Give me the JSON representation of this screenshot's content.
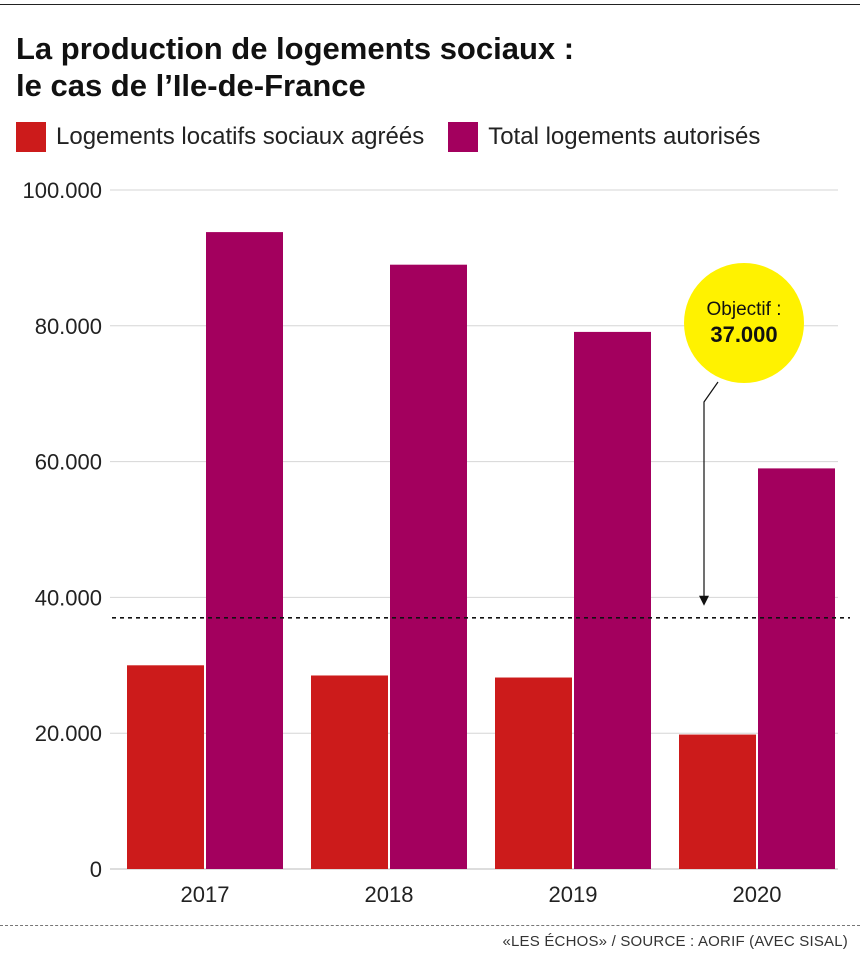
{
  "chart_data": {
    "type": "bar",
    "title": "La production de logements sociaux : le cas de l’Ile-de-France",
    "title_lines": [
      "La production de logements sociaux :",
      "le cas de l’Ile-de-France"
    ],
    "categories": [
      "2017",
      "2018",
      "2019",
      "2020"
    ],
    "series": [
      {
        "name": "Logements locatifs sociaux agréés",
        "values": [
          30000,
          28500,
          28200,
          19800
        ],
        "color": "#cc1b1b"
      },
      {
        "name": "Total logements autorisés",
        "values": [
          93800,
          89000,
          79100,
          59000
        ],
        "color": "#a3005e"
      }
    ],
    "ylim": [
      0,
      100000
    ],
    "y_ticks": [
      {
        "value": 0,
        "label": "0"
      },
      {
        "value": 20000,
        "label": "20.000"
      },
      {
        "value": 40000,
        "label": "40.000"
      },
      {
        "value": 60000,
        "label": "60.000"
      },
      {
        "value": 80000,
        "label": "80.000"
      },
      {
        "value": 100000,
        "label": "100.000"
      }
    ],
    "grid": true,
    "legend_position": "top-left",
    "target_line": {
      "value": 37000
    },
    "annotation": {
      "line1": "Objectif :",
      "line2": "37.000",
      "color": "#fff200"
    },
    "source": "«LES ÉCHOS» / SOURCE : AORIF (AVEC SISAL)"
  }
}
